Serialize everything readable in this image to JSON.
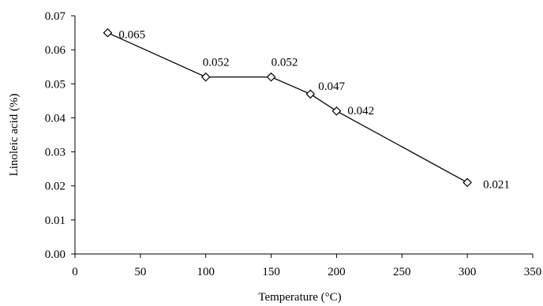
{
  "chart_data": {
    "type": "line",
    "xlabel": "Temperature (°C)",
    "ylabel": "Linoleic acid (%)",
    "xlim": [
      0,
      350
    ],
    "ylim": [
      0,
      0.07
    ],
    "x_ticks": [
      "0",
      "50",
      "100",
      "150",
      "200",
      "250",
      "300",
      "350"
    ],
    "y_ticks": [
      "0.00",
      "0.01",
      "0.02",
      "0.03",
      "0.04",
      "0.05",
      "0.06",
      "0.07"
    ],
    "grid": false,
    "marker": "diamond",
    "series": [
      {
        "x": [
          25,
          100,
          150,
          180,
          200,
          300
        ],
        "values": [
          0.065,
          0.052,
          0.052,
          0.047,
          0.042,
          0.021
        ],
        "labels": [
          "0.065",
          "0.052",
          "0.052",
          "0.047",
          "0.042",
          "0.021"
        ]
      }
    ]
  }
}
